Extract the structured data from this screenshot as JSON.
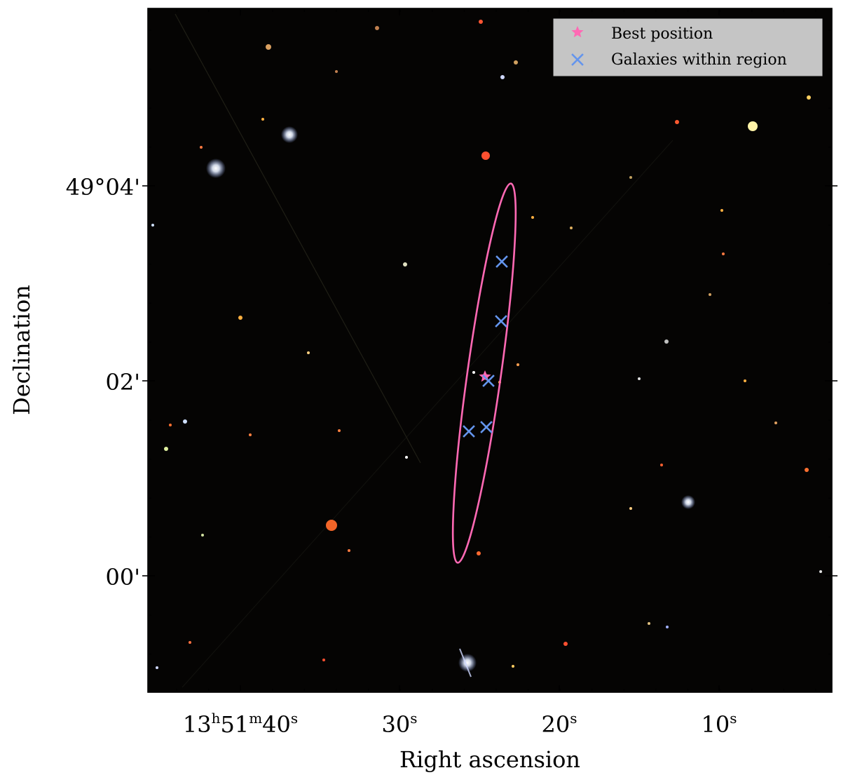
{
  "axes": {
    "xlabel": "Right ascension",
    "ylabel": "Declination",
    "x_ticks": [
      {
        "h": "13",
        "m": "51",
        "s": "40"
      },
      {
        "s": "30"
      },
      {
        "s": "20"
      },
      {
        "s": "10"
      }
    ],
    "y_ticks": [
      "49°04'",
      "02'",
      "00'"
    ]
  },
  "legend": {
    "placement": "top-right",
    "entries": [
      {
        "label": "Best position",
        "marker": "star",
        "color": "#ff69b4"
      },
      {
        "label": "Galaxies within region",
        "marker": "x",
        "color": "#6495ed"
      }
    ]
  },
  "colors": {
    "region": "#ff69b4",
    "galaxies": "#6495ed",
    "sky": "#050403"
  },
  "region": {
    "shape": "ellipse",
    "description_icon": "error-ellipse"
  },
  "units": {
    "h": "h",
    "m": "m",
    "s": "s"
  }
}
